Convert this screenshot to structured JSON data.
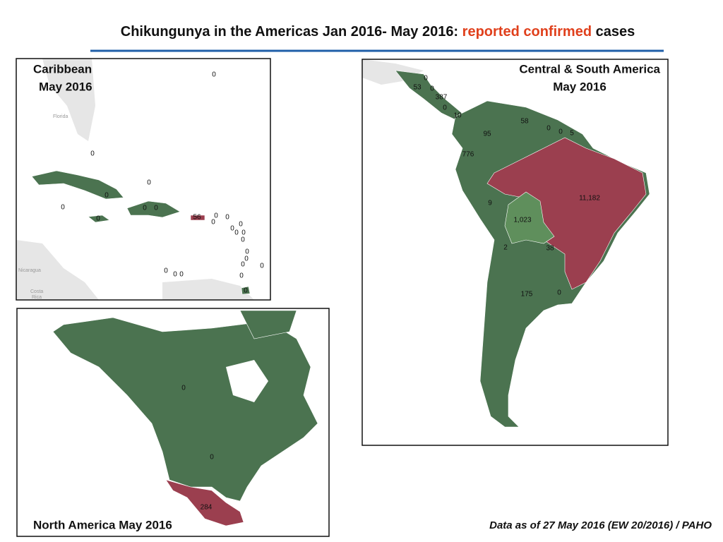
{
  "header": {
    "title_parts": [
      "Chikungunya in the Americas Jan 2016- May 2016:",
      "reported confirmed",
      "cases"
    ]
  },
  "panels": [
    {
      "title": "Caribbean",
      "subtitle": "May 2016",
      "place_names": [
        "Florida",
        "Nicaragua",
        "Costa",
        "Rica"
      ],
      "labels": [
        "0",
        "0",
        "0",
        "0",
        "0",
        "0",
        "0",
        "0",
        "56",
        "0",
        "0",
        "0",
        "0",
        "0",
        "0",
        "0",
        "0",
        "0",
        "0",
        "0",
        "0",
        "0",
        "0",
        "0",
        "0",
        "0"
      ]
    },
    {
      "title": "Central & South America",
      "subtitle": "May 2016",
      "labels": [
        "0",
        "53",
        "0",
        "387",
        "0",
        "10",
        "58",
        "95",
        "0",
        "0",
        "5",
        "776",
        "11,182",
        "9",
        "1,023",
        "2",
        "38",
        "175",
        "0"
      ]
    },
    {
      "title": "North America May 2016",
      "labels": [
        "0",
        "0",
        "284"
      ]
    }
  ],
  "footer": "Data as of 27 May 2016 (EW 20/2016) / PAHO"
}
